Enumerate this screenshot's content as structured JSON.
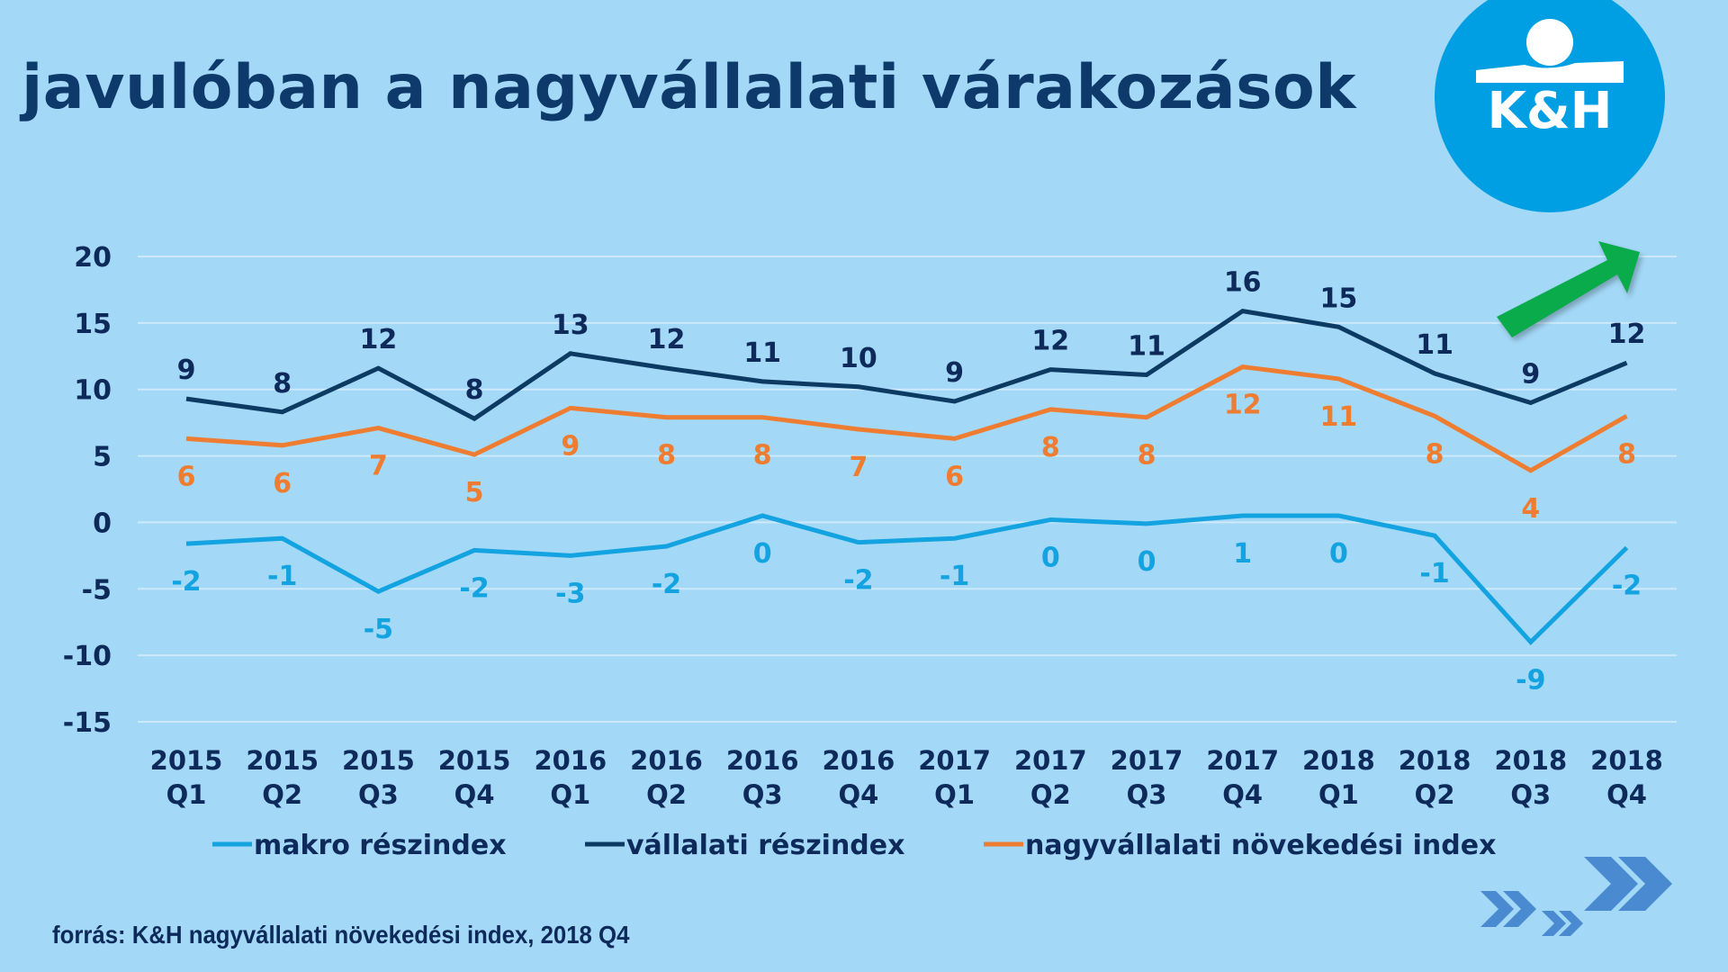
{
  "title": "javulóban a nagyvállalati várakozások",
  "logo": {
    "text": "K&H",
    "color": "#009fe3"
  },
  "source": "forrás: K&H nagyvállalati növekedési index, 2018 Q4",
  "colors": {
    "background": "#a3d8f6",
    "title": "#0d3a6b",
    "axis_text": "#0d2a5a",
    "gridline": "#cde9fb",
    "trend_arrow": "#0aab4a",
    "chevrons": "#4a8ad1"
  },
  "decorations": {
    "trend_arrow": "up-right-arrow-icon",
    "chevrons": "double-chevron-right-icon"
  },
  "chart_data": {
    "type": "line",
    "title": "javulóban a nagyvállalati várakozások",
    "xlabel": "",
    "ylabel": "",
    "ylim": [
      -15,
      20
    ],
    "yticks": [
      20,
      15,
      10,
      5,
      0,
      -5,
      -10,
      -15
    ],
    "grid": true,
    "legend_position": "bottom",
    "categories": [
      [
        "2015",
        "Q1"
      ],
      [
        "2015",
        "Q2"
      ],
      [
        "2015",
        "Q3"
      ],
      [
        "2015",
        "Q4"
      ],
      [
        "2016",
        "Q1"
      ],
      [
        "2016",
        "Q2"
      ],
      [
        "2016",
        "Q3"
      ],
      [
        "2016",
        "Q4"
      ],
      [
        "2017",
        "Q1"
      ],
      [
        "2017",
        "Q2"
      ],
      [
        "2017",
        "Q3"
      ],
      [
        "2017",
        "Q4"
      ],
      [
        "2018",
        "Q1"
      ],
      [
        "2018",
        "Q2"
      ],
      [
        "2018",
        "Q3"
      ],
      [
        "2018",
        "Q4"
      ]
    ],
    "series": [
      {
        "name": "makro részindex",
        "color": "#12a3e0",
        "values": [
          -1.6,
          -1.2,
          -5.2,
          -2.1,
          -2.5,
          -1.8,
          0.5,
          -1.5,
          -1.2,
          0.2,
          -0.1,
          0.5,
          0.5,
          -1.0,
          -9.0,
          -1.9
        ],
        "labels": [
          "-2",
          "-1",
          "-5",
          "-2",
          "-3",
          "-2",
          "0",
          "-2",
          "-1",
          "0",
          "0",
          "1",
          "0",
          "-1",
          "-9",
          "-2"
        ],
        "label_position": "below"
      },
      {
        "name": "vállalati részindex",
        "color": "#0d3a63",
        "values": [
          9.3,
          8.3,
          11.6,
          7.8,
          12.7,
          11.6,
          10.6,
          10.2,
          9.1,
          11.5,
          11.1,
          15.9,
          14.7,
          11.2,
          9.0,
          12.0
        ],
        "labels": [
          "9",
          "8",
          "12",
          "8",
          "13",
          "12",
          "11",
          "10",
          "9",
          "12",
          "11",
          "16",
          "15",
          "11",
          "9",
          "12"
        ],
        "label_position": "above"
      },
      {
        "name": "nagyvállalati növekedési index",
        "color": "#ee7d31",
        "values": [
          6.3,
          5.8,
          7.1,
          5.1,
          8.6,
          7.9,
          7.9,
          7.0,
          6.3,
          8.5,
          7.9,
          11.7,
          10.8,
          8.0,
          3.9,
          8.0
        ],
        "labels": [
          "6",
          "6",
          "7",
          "5",
          "9",
          "8",
          "8",
          "7",
          "6",
          "8",
          "8",
          "12",
          "11",
          "8",
          "4",
          "8"
        ],
        "label_position": "below"
      }
    ]
  }
}
